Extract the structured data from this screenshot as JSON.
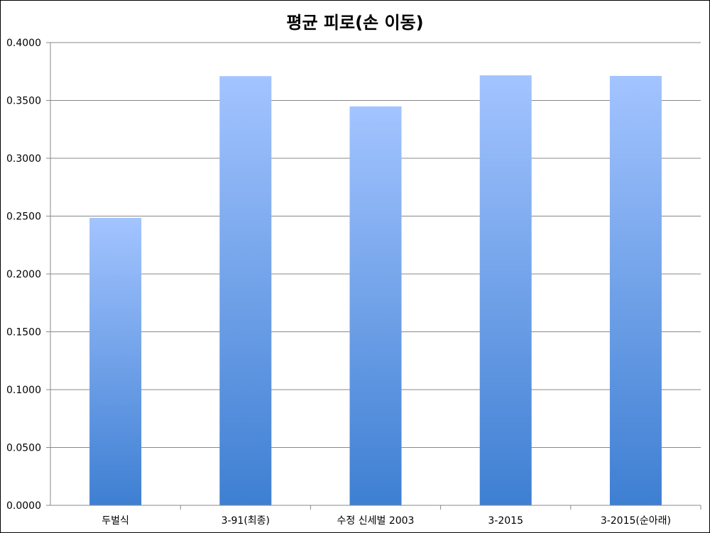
{
  "chart_data": {
    "type": "bar",
    "title": "평균 피로(손 이동)",
    "categories": [
      "두벌식",
      "3-91(최종)",
      "수정 신세벌 2003",
      "3-2015",
      "3-2015(순아래)"
    ],
    "values": [
      0.2485,
      0.371,
      0.3448,
      0.3717,
      0.3712
    ],
    "ylim": [
      0,
      0.4
    ],
    "yticks": [
      "0.0000",
      "0.0500",
      "0.1000",
      "0.1500",
      "0.2000",
      "0.2500",
      "0.3000",
      "0.3500",
      "0.4000"
    ],
    "xlabel": "",
    "ylabel": "",
    "grid": true,
    "colors": {
      "bar_top": "#A3C4FF",
      "bar_bottom": "#3E7FD2",
      "grid": "#888888"
    }
  }
}
